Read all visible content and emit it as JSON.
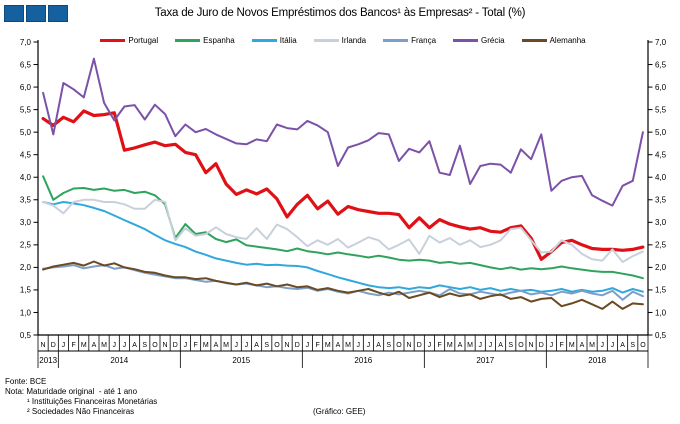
{
  "header": {
    "title": "Taxa de Juro de Novos Empréstimos dos Bancos¹ às Empresas² - Total (%)",
    "logo": {
      "squares": 3,
      "color": "#15619F"
    }
  },
  "footer": {
    "fonte": "Fonte: BCE",
    "nota": "Nota: Maturidade original  - até 1 ano",
    "note1": "¹ Instituições Financeiras Monetárias",
    "note2": "² Sociedades Não Financeiras",
    "credit": "(Gráfico: GEE)"
  },
  "chart_data": {
    "type": "line",
    "title": "Taxa de Juro de Novos Empréstimos dos Bancos¹ às Empresas² - Total (%)",
    "unit": "%",
    "legend_position": "top",
    "y_axis": {
      "min": 0.5,
      "max": 7.0,
      "step": 0.5,
      "label_format": "decimal-comma",
      "sides": "both",
      "gridlines": false
    },
    "x_axis": {
      "start": "Nov 2013",
      "end": "Out 2018",
      "month_letters": [
        "N",
        "D",
        "J",
        "F",
        "M",
        "A",
        "M",
        "J",
        "J",
        "A",
        "S",
        "O",
        "N",
        "D",
        "J",
        "F",
        "M",
        "A",
        "M",
        "J",
        "J",
        "A",
        "S",
        "O",
        "N",
        "D",
        "J",
        "F",
        "M",
        "A",
        "M",
        "J",
        "J",
        "A",
        "S",
        "O",
        "N",
        "D",
        "J",
        "F",
        "M",
        "A",
        "M",
        "J",
        "J",
        "A",
        "S",
        "O",
        "N",
        "D",
        "J",
        "F",
        "M",
        "A",
        "M",
        "J",
        "J",
        "A",
        "S",
        "O"
      ],
      "years": [
        {
          "label": "2013",
          "months": 2
        },
        {
          "label": "2014",
          "months": 12
        },
        {
          "label": "2015",
          "months": 12
        },
        {
          "label": "2016",
          "months": 12
        },
        {
          "label": "2017",
          "months": 12
        },
        {
          "label": "2018",
          "months": 10
        }
      ]
    },
    "series": [
      {
        "key": "portugal",
        "name": "Portugal",
        "color": "#E01116",
        "width": 3.2,
        "values": [
          5.3,
          5.15,
          5.33,
          5.23,
          5.47,
          5.37,
          5.39,
          5.43,
          4.6,
          4.65,
          4.72,
          4.78,
          4.7,
          4.73,
          4.55,
          4.5,
          4.1,
          4.3,
          3.85,
          3.62,
          3.72,
          3.63,
          3.74,
          3.52,
          3.12,
          3.4,
          3.6,
          3.3,
          3.47,
          3.18,
          3.35,
          3.28,
          3.24,
          3.2,
          3.2,
          3.17,
          2.88,
          3.1,
          2.88,
          3.06,
          2.96,
          2.9,
          2.85,
          2.88,
          2.8,
          2.78,
          2.88,
          2.92,
          2.65,
          2.18,
          2.35,
          2.55,
          2.6,
          2.5,
          2.42,
          2.4,
          2.4,
          2.38,
          2.4,
          2.45
        ]
      },
      {
        "key": "espanha",
        "name": "Espanha",
        "color": "#2FA35C",
        "width": 2,
        "values": [
          4.02,
          3.5,
          3.65,
          3.75,
          3.76,
          3.72,
          3.75,
          3.7,
          3.72,
          3.65,
          3.68,
          3.6,
          3.4,
          2.65,
          2.96,
          2.74,
          2.78,
          2.63,
          2.56,
          2.62,
          2.49,
          2.46,
          2.43,
          2.4,
          2.36,
          2.42,
          2.36,
          2.33,
          2.29,
          2.33,
          2.29,
          2.26,
          2.22,
          2.26,
          2.22,
          2.17,
          2.15,
          2.17,
          2.15,
          2.1,
          2.12,
          2.08,
          2.1,
          2.05,
          2.0,
          1.96,
          2.0,
          1.95,
          1.98,
          1.96,
          1.98,
          2.02,
          1.98,
          1.95,
          1.92,
          1.9,
          1.9,
          1.86,
          1.82,
          1.76
        ]
      },
      {
        "key": "italia",
        "name": "Itália",
        "color": "#31A8DC",
        "width": 2,
        "values": [
          3.45,
          3.4,
          3.45,
          3.42,
          3.38,
          3.32,
          3.25,
          3.15,
          3.05,
          2.95,
          2.85,
          2.72,
          2.6,
          2.52,
          2.45,
          2.35,
          2.28,
          2.2,
          2.15,
          2.1,
          2.06,
          2.08,
          2.05,
          2.06,
          2.04,
          2.03,
          2.0,
          1.92,
          1.85,
          1.78,
          1.72,
          1.66,
          1.6,
          1.56,
          1.54,
          1.56,
          1.52,
          1.56,
          1.54,
          1.6,
          1.56,
          1.52,
          1.56,
          1.5,
          1.54,
          1.48,
          1.52,
          1.48,
          1.5,
          1.46,
          1.48,
          1.52,
          1.46,
          1.5,
          1.46,
          1.48,
          1.54,
          1.44,
          1.52,
          1.46
        ]
      },
      {
        "key": "irlanda",
        "name": "Irlanda",
        "color": "#C8D1DB",
        "width": 2,
        "values": [
          3.45,
          3.37,
          3.2,
          3.45,
          3.5,
          3.5,
          3.45,
          3.45,
          3.4,
          3.3,
          3.3,
          3.5,
          3.45,
          2.6,
          2.87,
          2.7,
          2.74,
          2.89,
          2.74,
          2.67,
          2.63,
          2.87,
          2.63,
          2.95,
          2.85,
          2.67,
          2.47,
          2.6,
          2.5,
          2.63,
          2.44,
          2.55,
          2.67,
          2.6,
          2.4,
          2.5,
          2.62,
          2.3,
          2.7,
          2.55,
          2.65,
          2.5,
          2.6,
          2.45,
          2.5,
          2.6,
          2.85,
          2.88,
          2.6,
          2.33,
          2.35,
          2.6,
          2.5,
          2.3,
          2.18,
          2.15,
          2.4,
          2.12,
          2.25,
          2.35
        ]
      },
      {
        "key": "franca",
        "name": "França",
        "color": "#7C9FC9",
        "width": 2,
        "values": [
          1.97,
          2.0,
          2.02,
          2.05,
          1.98,
          2.02,
          2.05,
          1.97,
          2.0,
          1.94,
          1.88,
          1.84,
          1.8,
          1.76,
          1.76,
          1.72,
          1.68,
          1.7,
          1.65,
          1.62,
          1.64,
          1.6,
          1.56,
          1.58,
          1.54,
          1.52,
          1.55,
          1.48,
          1.52,
          1.46,
          1.42,
          1.48,
          1.42,
          1.38,
          1.44,
          1.4,
          1.44,
          1.48,
          1.44,
          1.38,
          1.52,
          1.42,
          1.4,
          1.46,
          1.42,
          1.38,
          1.44,
          1.48,
          1.4,
          1.44,
          1.38,
          1.46,
          1.42,
          1.48,
          1.42,
          1.38,
          1.48,
          1.28,
          1.46,
          1.36
        ]
      },
      {
        "key": "grecia",
        "name": "Grécia",
        "color": "#7B52A8",
        "width": 2,
        "values": [
          5.87,
          4.95,
          6.09,
          5.95,
          5.77,
          6.63,
          5.65,
          5.26,
          5.57,
          5.6,
          5.28,
          5.61,
          5.4,
          4.91,
          5.17,
          5.0,
          5.07,
          4.95,
          4.85,
          4.75,
          4.73,
          4.84,
          4.8,
          5.17,
          5.09,
          5.06,
          5.25,
          5.15,
          5.0,
          4.25,
          4.66,
          4.73,
          4.82,
          4.98,
          4.95,
          4.36,
          4.63,
          4.55,
          4.8,
          4.1,
          4.05,
          4.7,
          3.85,
          4.25,
          4.3,
          4.28,
          4.1,
          4.62,
          4.4,
          4.95,
          3.7,
          3.92,
          4.0,
          4.03,
          3.6,
          3.48,
          3.37,
          3.81,
          3.92,
          5.0
        ]
      },
      {
        "key": "alemanha",
        "name": "Alemanha",
        "color": "#6B4A21",
        "width": 2,
        "values": [
          1.95,
          2.02,
          2.06,
          2.1,
          2.04,
          2.13,
          2.04,
          2.09,
          2.0,
          1.96,
          1.9,
          1.88,
          1.82,
          1.78,
          1.78,
          1.74,
          1.76,
          1.7,
          1.66,
          1.62,
          1.66,
          1.6,
          1.64,
          1.58,
          1.62,
          1.56,
          1.58,
          1.5,
          1.54,
          1.48,
          1.44,
          1.48,
          1.52,
          1.44,
          1.38,
          1.46,
          1.32,
          1.38,
          1.44,
          1.34,
          1.42,
          1.36,
          1.4,
          1.3,
          1.36,
          1.4,
          1.3,
          1.34,
          1.24,
          1.3,
          1.32,
          1.14,
          1.2,
          1.28,
          1.18,
          1.08,
          1.24,
          1.08,
          1.2,
          1.18
        ]
      }
    ]
  }
}
